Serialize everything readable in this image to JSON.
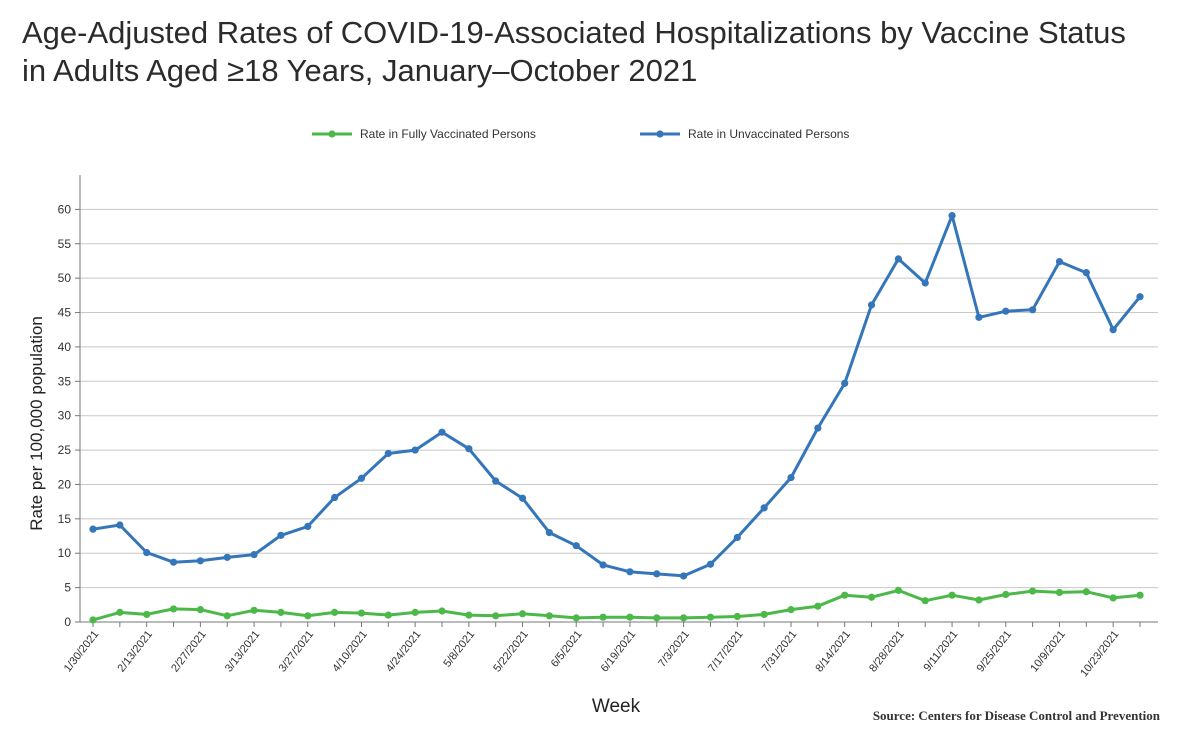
{
  "title_line1": "Age-Adjusted Rates of COVID-19-Associated Hospitalizations by Vaccine Status",
  "title_line2": "in Adults Aged ≥18 Years, January–October 2021",
  "source": "Source: Centers for Disease Control and Prevention",
  "chart_data": {
    "type": "line",
    "xlabel": "Week",
    "ylabel": "Rate per 100,000 population",
    "ylim": [
      0,
      65
    ],
    "yticks": [
      0,
      5,
      10,
      15,
      20,
      25,
      30,
      35,
      40,
      45,
      50,
      55,
      60
    ],
    "grid": true,
    "legend_position": "top-center",
    "x_tick_labels": [
      "1/30/2021",
      "2/13/2021",
      "2/27/2021",
      "3/13/2021",
      "3/27/2021",
      "4/10/2021",
      "4/24/2021",
      "5/8/2021",
      "5/22/2021",
      "6/5/2021",
      "6/19/2021",
      "7/3/2021",
      "7/17/2021",
      "7/31/2021",
      "8/14/2021",
      "8/28/2021",
      "9/11/2021",
      "9/25/2021",
      "10/9/2021",
      "10/23/2021"
    ],
    "x": [
      "1/30/2021",
      "2/6/2021",
      "2/13/2021",
      "2/20/2021",
      "2/27/2021",
      "3/6/2021",
      "3/13/2021",
      "3/20/2021",
      "3/27/2021",
      "4/3/2021",
      "4/10/2021",
      "4/17/2021",
      "4/24/2021",
      "5/1/2021",
      "5/8/2021",
      "5/15/2021",
      "5/22/2021",
      "5/29/2021",
      "6/5/2021",
      "6/12/2021",
      "6/19/2021",
      "6/26/2021",
      "7/3/2021",
      "7/10/2021",
      "7/17/2021",
      "7/24/2021",
      "7/31/2021",
      "8/7/2021",
      "8/14/2021",
      "8/21/2021",
      "8/28/2021",
      "9/4/2021",
      "9/11/2021",
      "9/18/2021",
      "9/25/2021",
      "10/2/2021",
      "10/9/2021",
      "10/16/2021",
      "10/23/2021",
      "10/30/2021"
    ],
    "series": [
      {
        "name": "Rate in Fully Vaccinated Persons",
        "color": "#4cb848",
        "values": [
          0.3,
          1.4,
          1.1,
          1.9,
          1.8,
          0.9,
          1.7,
          1.4,
          0.9,
          1.4,
          1.3,
          1.0,
          1.4,
          1.6,
          1.0,
          0.9,
          1.2,
          0.9,
          0.6,
          0.7,
          0.7,
          0.6,
          0.6,
          0.7,
          0.8,
          1.1,
          1.8,
          2.3,
          3.9,
          3.6,
          4.6,
          3.1,
          3.9,
          3.2,
          4.0,
          4.5,
          4.3,
          4.4,
          3.5,
          3.9
        ]
      },
      {
        "name": "Rate in Unvaccinated Persons",
        "color": "#3476b9",
        "values": [
          13.5,
          14.1,
          10.1,
          8.7,
          8.9,
          9.4,
          9.8,
          12.6,
          13.9,
          18.1,
          20.9,
          24.5,
          25.0,
          27.6,
          25.2,
          20.5,
          18.0,
          13.0,
          11.1,
          8.3,
          7.3,
          7.0,
          6.7,
          8.4,
          12.3,
          16.6,
          21.0,
          28.2,
          34.7,
          46.1,
          52.8,
          49.3,
          59.1,
          44.3,
          45.2,
          45.4,
          52.4,
          50.8,
          42.5,
          47.3
        ]
      }
    ]
  }
}
